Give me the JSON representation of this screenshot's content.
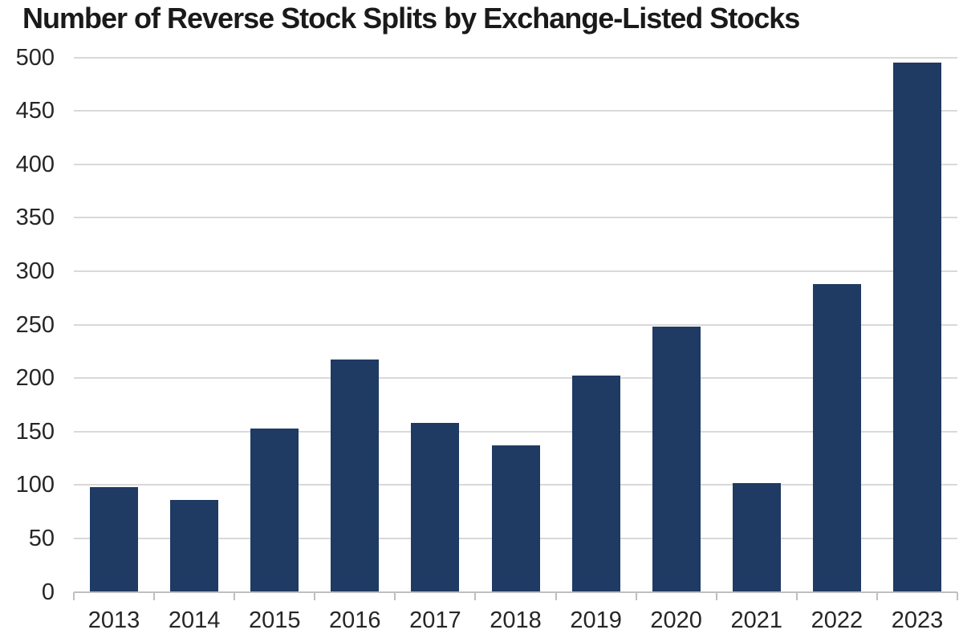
{
  "page": {
    "background": "#ffffff"
  },
  "chart_data": {
    "type": "bar",
    "title": "Number of Reverse Stock Splits by Exchange-Listed Stocks",
    "xlabel": "",
    "ylabel": "",
    "categories": [
      "2013",
      "2014",
      "2015",
      "2016",
      "2017",
      "2018",
      "2019",
      "2020",
      "2021",
      "2022",
      "2023"
    ],
    "values": [
      98,
      86,
      153,
      217,
      158,
      137,
      202,
      248,
      102,
      288,
      495
    ],
    "ylim": [
      0,
      500
    ],
    "ytick_step": 50,
    "yticks": [
      0,
      50,
      100,
      150,
      200,
      250,
      300,
      350,
      400,
      450,
      500
    ],
    "grid": true,
    "legend_position": "none",
    "colors": {
      "bar": "#1f3a63",
      "gridline": "#d9d9d9",
      "axis_line": "#bfbfbf",
      "tick_label": "#262626",
      "title": "#1a1a1a"
    }
  }
}
